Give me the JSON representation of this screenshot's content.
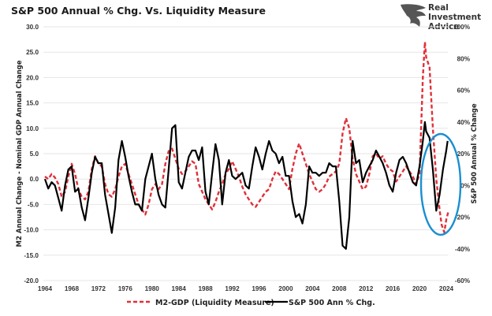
{
  "brand": {
    "line1": "Real",
    "line2": "Investment",
    "line3": "Advice"
  },
  "colors": {
    "m2": "#e0303a",
    "spx": "#000000",
    "highlight": "#1a8fcf",
    "grid": "#e6e6e6"
  },
  "chart_data": {
    "type": "line",
    "title": "S&P 500 Annual % Chg. Vs. Liquidity Measure",
    "xlabel": "",
    "ylabel": "M2 Annual Change - Nominal GDP Annual Change",
    "y2label": "S&P 500 Annual % Change",
    "xlim": [
      1964,
      2024
    ],
    "ylim": [
      -20,
      30
    ],
    "y2lim": [
      -60,
      100
    ],
    "x_ticks": [
      "1964",
      "1968",
      "1972",
      "1976",
      "1980",
      "1984",
      "1988",
      "1992",
      "1996",
      "2000",
      "2004",
      "2008",
      "2012",
      "2016",
      "2020",
      "2024"
    ],
    "y_ticks": [
      "30.0",
      "25.0",
      "20.0",
      "15.0",
      "10.0",
      "5.0",
      "0.0",
      "-5.0",
      "-10.0",
      "-15.0",
      "-20.0"
    ],
    "y2_ticks": [
      "100%",
      "80%",
      "60%",
      "40%",
      "20%",
      "0%",
      "-20%",
      "-40%",
      "-60%"
    ],
    "grid": true,
    "legend_position": "bottom",
    "annotation": "blue ellipse highlighting 2021-2024 divergence",
    "series": [
      {
        "name": "M2-GDP (Liquidity Measure)",
        "axis": "left",
        "style": "dashed",
        "points": [
          [
            1964,
            0.5
          ],
          [
            1964.5,
            0.0
          ],
          [
            1965,
            1.0
          ],
          [
            1965.5,
            0.3
          ],
          [
            1966,
            -1.0
          ],
          [
            1966.5,
            -3.5
          ],
          [
            1967,
            -2.5
          ],
          [
            1967.5,
            0.5
          ],
          [
            1968,
            3.0
          ],
          [
            1968.5,
            1.0
          ],
          [
            1969,
            -2.0
          ],
          [
            1969.5,
            -3.5
          ],
          [
            1970,
            -4.0
          ],
          [
            1970.5,
            -2.5
          ],
          [
            1971,
            2.0
          ],
          [
            1971.5,
            4.5
          ],
          [
            1972,
            3.0
          ],
          [
            1972.5,
            2.5
          ],
          [
            1973,
            -1.0
          ],
          [
            1973.5,
            -3.0
          ],
          [
            1974,
            -3.5
          ],
          [
            1974.5,
            -2.0
          ],
          [
            1975,
            0.5
          ],
          [
            1975.5,
            2.5
          ],
          [
            1976,
            3.0
          ],
          [
            1976.5,
            1.0
          ],
          [
            1977,
            -1.0
          ],
          [
            1977.5,
            -3.0
          ],
          [
            1978,
            -5.0
          ],
          [
            1978.5,
            -6.0
          ],
          [
            1979,
            -7.0
          ],
          [
            1979.5,
            -5.0
          ],
          [
            1980,
            -2.0
          ],
          [
            1980.5,
            -1.0
          ],
          [
            1981,
            -2.0
          ],
          [
            1981.5,
            -1.0
          ],
          [
            1982,
            3.0
          ],
          [
            1982.5,
            5.5
          ],
          [
            1983,
            6.0
          ],
          [
            1983.5,
            4.0
          ],
          [
            1984,
            2.0
          ],
          [
            1984.5,
            1.0
          ],
          [
            1985,
            1.5
          ],
          [
            1985.5,
            2.5
          ],
          [
            1986,
            3.5
          ],
          [
            1986.5,
            3.0
          ],
          [
            1987,
            -1.0
          ],
          [
            1987.5,
            -2.5
          ],
          [
            1988,
            -4.0
          ],
          [
            1988.5,
            -5.0
          ],
          [
            1989,
            -6.0
          ],
          [
            1989.5,
            -4.5
          ],
          [
            1990,
            -2.5
          ],
          [
            1990.5,
            -1.0
          ],
          [
            1991,
            1.0
          ],
          [
            1991.5,
            2.0
          ],
          [
            1992,
            3.5
          ],
          [
            1992.5,
            2.0
          ],
          [
            1993,
            0.5
          ],
          [
            1993.5,
            -1.5
          ],
          [
            1994,
            -3.0
          ],
          [
            1994.5,
            -4.0
          ],
          [
            1995,
            -5.0
          ],
          [
            1995.5,
            -5.5
          ],
          [
            1996,
            -4.5
          ],
          [
            1996.5,
            -3.5
          ],
          [
            1997,
            -2.5
          ],
          [
            1997.5,
            -2.0
          ],
          [
            1998,
            0.0
          ],
          [
            1998.5,
            1.5
          ],
          [
            1999,
            1.0
          ],
          [
            1999.5,
            0.0
          ],
          [
            2000,
            -1.0
          ],
          [
            2000.5,
            -2.0
          ],
          [
            2001,
            2.0
          ],
          [
            2001.5,
            5.0
          ],
          [
            2002,
            7.0
          ],
          [
            2002.5,
            5.0
          ],
          [
            2003,
            3.0
          ],
          [
            2003.5,
            1.0
          ],
          [
            2004,
            -0.5
          ],
          [
            2004.5,
            -2.0
          ],
          [
            2005,
            -2.5
          ],
          [
            2005.5,
            -2.0
          ],
          [
            2006,
            -1.0
          ],
          [
            2006.5,
            0.5
          ],
          [
            2007,
            1.0
          ],
          [
            2007.5,
            1.5
          ],
          [
            2008,
            3.0
          ],
          [
            2008.5,
            9.0
          ],
          [
            2009,
            12.0
          ],
          [
            2009.5,
            10.0
          ],
          [
            2010,
            4.0
          ],
          [
            2010.5,
            1.0
          ],
          [
            2011,
            -0.5
          ],
          [
            2011.5,
            -2.0
          ],
          [
            2012,
            -1.5
          ],
          [
            2012.5,
            1.0
          ],
          [
            2013,
            4.5
          ],
          [
            2013.5,
            5.0
          ],
          [
            2014,
            4.0
          ],
          [
            2014.5,
            4.5
          ],
          [
            2015,
            3.0
          ],
          [
            2015.5,
            2.0
          ],
          [
            2016,
            1.5
          ],
          [
            2016.5,
            -0.5
          ],
          [
            2017,
            0.5
          ],
          [
            2017.5,
            1.5
          ],
          [
            2018,
            2.5
          ],
          [
            2018.5,
            1.5
          ],
          [
            2019,
            0.5
          ],
          [
            2019.5,
            -1.0
          ],
          [
            2020,
            1.0
          ],
          [
            2020.5,
            20.0
          ],
          [
            2020.8,
            27.0
          ],
          [
            2021,
            24.0
          ],
          [
            2021.5,
            22.0
          ],
          [
            2022,
            10.0
          ],
          [
            2022.5,
            0.0
          ],
          [
            2023,
            -6.0
          ],
          [
            2023.3,
            -9.0
          ],
          [
            2023.7,
            -10.5
          ],
          [
            2024,
            -8.0
          ],
          [
            2024.3,
            -6.5
          ]
        ]
      },
      {
        "name": "S&P 500 Ann % Chg.",
        "axis": "right",
        "style": "solid",
        "points": [
          [
            1964,
            4
          ],
          [
            1964.5,
            -2
          ],
          [
            1965,
            2
          ],
          [
            1965.5,
            0
          ],
          [
            1966,
            -8
          ],
          [
            1966.5,
            -16
          ],
          [
            1967,
            0
          ],
          [
            1967.5,
            10
          ],
          [
            1968,
            12
          ],
          [
            1968.5,
            -4
          ],
          [
            1969,
            -2
          ],
          [
            1969.5,
            -14
          ],
          [
            1970,
            -22
          ],
          [
            1970.5,
            -8
          ],
          [
            1971,
            8
          ],
          [
            1971.5,
            18
          ],
          [
            1972,
            14
          ],
          [
            1972.5,
            14
          ],
          [
            1973,
            -6
          ],
          [
            1973.5,
            -18
          ],
          [
            1974,
            -30
          ],
          [
            1974.5,
            -14
          ],
          [
            1975,
            16
          ],
          [
            1975.5,
            28
          ],
          [
            1976,
            18
          ],
          [
            1976.5,
            6
          ],
          [
            1977,
            -4
          ],
          [
            1977.5,
            -12
          ],
          [
            1978,
            -12
          ],
          [
            1978.5,
            -16
          ],
          [
            1979,
            4
          ],
          [
            1979.5,
            12
          ],
          [
            1980,
            20
          ],
          [
            1980.5,
            4
          ],
          [
            1981,
            -6
          ],
          [
            1981.5,
            -12
          ],
          [
            1982,
            -14
          ],
          [
            1982.5,
            10
          ],
          [
            1983,
            36
          ],
          [
            1983.5,
            38
          ],
          [
            1984,
            2
          ],
          [
            1984.5,
            -2
          ],
          [
            1985,
            8
          ],
          [
            1985.5,
            18
          ],
          [
            1986,
            22
          ],
          [
            1986.5,
            22
          ],
          [
            1987,
            16
          ],
          [
            1987.5,
            24
          ],
          [
            1988,
            -4
          ],
          [
            1988.5,
            -12
          ],
          [
            1989,
            8
          ],
          [
            1989.5,
            26
          ],
          [
            1990,
            16
          ],
          [
            1990.5,
            -12
          ],
          [
            1991,
            8
          ],
          [
            1991.5,
            16
          ],
          [
            1992,
            6
          ],
          [
            1992.5,
            4
          ],
          [
            1993,
            6
          ],
          [
            1993.5,
            8
          ],
          [
            1994,
            0
          ],
          [
            1994.5,
            -2
          ],
          [
            1995,
            12
          ],
          [
            1995.5,
            24
          ],
          [
            1996,
            18
          ],
          [
            1996.5,
            10
          ],
          [
            1997,
            20
          ],
          [
            1997.5,
            28
          ],
          [
            1998,
            22
          ],
          [
            1998.5,
            20
          ],
          [
            1999,
            14
          ],
          [
            1999.5,
            18
          ],
          [
            2000,
            6
          ],
          [
            2000.5,
            6
          ],
          [
            2001,
            -10
          ],
          [
            2001.5,
            -20
          ],
          [
            2002,
            -18
          ],
          [
            2002.5,
            -24
          ],
          [
            2003,
            -12
          ],
          [
            2003.5,
            12
          ],
          [
            2004,
            8
          ],
          [
            2004.5,
            8
          ],
          [
            2005,
            6
          ],
          [
            2005.5,
            8
          ],
          [
            2006,
            8
          ],
          [
            2006.5,
            14
          ],
          [
            2007,
            12
          ],
          [
            2007.5,
            12
          ],
          [
            2008,
            -10
          ],
          [
            2008.5,
            -38
          ],
          [
            2009,
            -40
          ],
          [
            2009.5,
            -20
          ],
          [
            2010,
            28
          ],
          [
            2010.5,
            14
          ],
          [
            2011,
            16
          ],
          [
            2011.5,
            2
          ],
          [
            2012,
            8
          ],
          [
            2012.5,
            12
          ],
          [
            2013,
            16
          ],
          [
            2013.5,
            22
          ],
          [
            2014,
            18
          ],
          [
            2014.5,
            14
          ],
          [
            2015,
            8
          ],
          [
            2015.5,
            0
          ],
          [
            2016,
            -4
          ],
          [
            2016.5,
            8
          ],
          [
            2017,
            16
          ],
          [
            2017.5,
            18
          ],
          [
            2018,
            14
          ],
          [
            2018.5,
            8
          ],
          [
            2019,
            2
          ],
          [
            2019.5,
            0
          ],
          [
            2020,
            12
          ],
          [
            2020.5,
            28
          ],
          [
            2020.8,
            40
          ],
          [
            2021,
            34
          ],
          [
            2021.5,
            30
          ],
          [
            2022,
            10
          ],
          [
            2022.5,
            -16
          ],
          [
            2023,
            -6
          ],
          [
            2023.5,
            10
          ],
          [
            2024,
            22
          ],
          [
            2024.2,
            28
          ]
        ]
      }
    ]
  }
}
